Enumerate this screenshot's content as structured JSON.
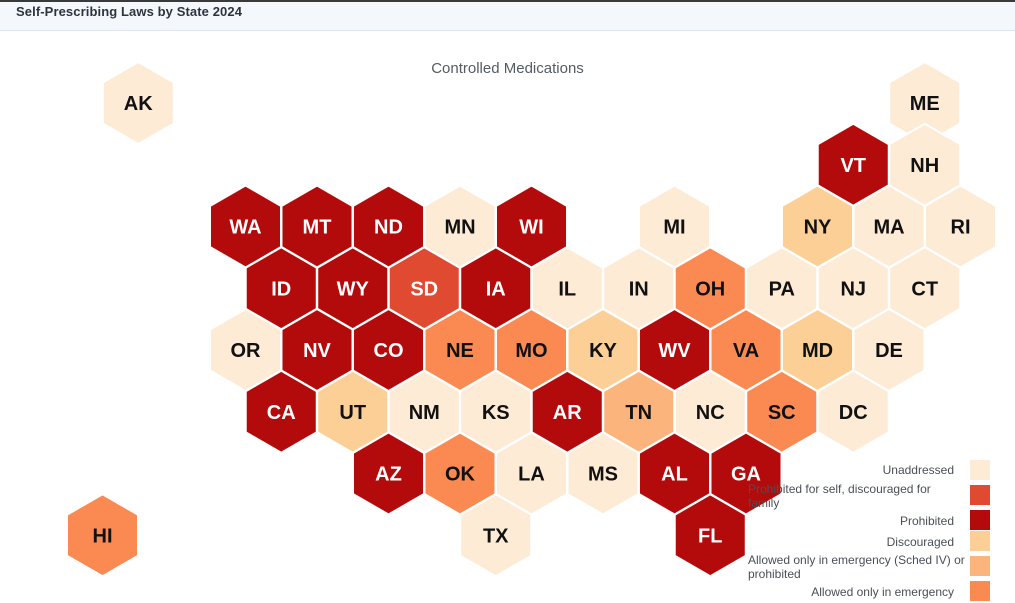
{
  "header": {
    "title": "Self-Prescribing Laws by State 2024"
  },
  "map": {
    "title": "Controlled Medications",
    "legend": [
      {
        "key": "unaddressed",
        "label": "Unaddressed",
        "color": "#fdebd6"
      },
      {
        "key": "prohibited_self_discouraged_family",
        "label": "Prohibited for self, discouraged for family",
        "color": "#df4a30"
      },
      {
        "key": "prohibited",
        "label": "Prohibited",
        "color": "#b30b0b"
      },
      {
        "key": "discouraged",
        "label": "Discouraged",
        "color": "#fbcf96"
      },
      {
        "key": "emergency_sched_iv",
        "label": "Allowed only in emergency (Sched IV) or prohibited",
        "color": "#fbb57c"
      },
      {
        "key": "emergency",
        "label": "Allowed only in emergency",
        "color": "#fb8a52"
      }
    ],
    "states": [
      {
        "abbr": "AK",
        "status": "unaddressed"
      },
      {
        "abbr": "ME",
        "status": "unaddressed"
      },
      {
        "abbr": "VT",
        "status": "prohibited"
      },
      {
        "abbr": "NH",
        "status": "unaddressed"
      },
      {
        "abbr": "WA",
        "status": "prohibited"
      },
      {
        "abbr": "MT",
        "status": "prohibited"
      },
      {
        "abbr": "ND",
        "status": "prohibited"
      },
      {
        "abbr": "MN",
        "status": "unaddressed"
      },
      {
        "abbr": "WI",
        "status": "prohibited"
      },
      {
        "abbr": "MI",
        "status": "unaddressed"
      },
      {
        "abbr": "NY",
        "status": "discouraged"
      },
      {
        "abbr": "MA",
        "status": "unaddressed"
      },
      {
        "abbr": "RI",
        "status": "unaddressed"
      },
      {
        "abbr": "ID",
        "status": "prohibited"
      },
      {
        "abbr": "WY",
        "status": "prohibited"
      },
      {
        "abbr": "SD",
        "status": "prohibited_self_discouraged_family"
      },
      {
        "abbr": "IA",
        "status": "prohibited"
      },
      {
        "abbr": "IL",
        "status": "unaddressed"
      },
      {
        "abbr": "IN",
        "status": "unaddressed"
      },
      {
        "abbr": "OH",
        "status": "emergency"
      },
      {
        "abbr": "PA",
        "status": "unaddressed"
      },
      {
        "abbr": "NJ",
        "status": "unaddressed"
      },
      {
        "abbr": "CT",
        "status": "unaddressed"
      },
      {
        "abbr": "OR",
        "status": "unaddressed"
      },
      {
        "abbr": "NV",
        "status": "prohibited"
      },
      {
        "abbr": "CO",
        "status": "prohibited"
      },
      {
        "abbr": "NE",
        "status": "emergency"
      },
      {
        "abbr": "MO",
        "status": "emergency"
      },
      {
        "abbr": "KY",
        "status": "discouraged"
      },
      {
        "abbr": "WV",
        "status": "prohibited"
      },
      {
        "abbr": "VA",
        "status": "emergency"
      },
      {
        "abbr": "MD",
        "status": "discouraged"
      },
      {
        "abbr": "DE",
        "status": "unaddressed"
      },
      {
        "abbr": "CA",
        "status": "prohibited"
      },
      {
        "abbr": "UT",
        "status": "discouraged"
      },
      {
        "abbr": "NM",
        "status": "unaddressed"
      },
      {
        "abbr": "KS",
        "status": "unaddressed"
      },
      {
        "abbr": "AR",
        "status": "prohibited"
      },
      {
        "abbr": "TN",
        "status": "emergency_sched_iv"
      },
      {
        "abbr": "NC",
        "status": "unaddressed"
      },
      {
        "abbr": "SC",
        "status": "emergency"
      },
      {
        "abbr": "DC",
        "status": "unaddressed"
      },
      {
        "abbr": "AZ",
        "status": "prohibited"
      },
      {
        "abbr": "OK",
        "status": "emergency"
      },
      {
        "abbr": "LA",
        "status": "unaddressed"
      },
      {
        "abbr": "MS",
        "status": "unaddressed"
      },
      {
        "abbr": "AL",
        "status": "prohibited"
      },
      {
        "abbr": "GA",
        "status": "prohibited"
      },
      {
        "abbr": "HI",
        "status": "emergency"
      },
      {
        "abbr": "TX",
        "status": "unaddressed"
      },
      {
        "abbr": "FL",
        "status": "prohibited"
      }
    ]
  }
}
